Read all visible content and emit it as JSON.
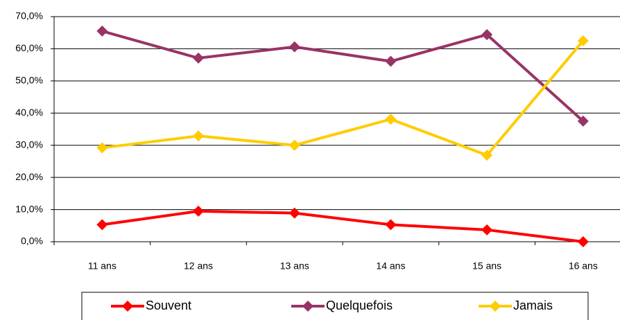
{
  "chart_data": {
    "type": "line",
    "categories": [
      "11 ans",
      "12 ans",
      "13 ans",
      "14 ans",
      "15 ans",
      "16 ans"
    ],
    "series": [
      {
        "name": "Souvent",
        "color": "#ff0000",
        "values": [
          5.3,
          9.5,
          8.9,
          5.3,
          3.7,
          0
        ]
      },
      {
        "name": "Quelquefois",
        "color": "#993366",
        "values": [
          65.5,
          57.1,
          60.6,
          56.1,
          64.4,
          37.5
        ]
      },
      {
        "name": "Jamais",
        "color": "#ffcc00",
        "values": [
          29.2,
          32.9,
          30.0,
          38.1,
          26.9,
          62.5
        ]
      }
    ],
    "ylim": [
      0,
      70
    ],
    "yticks": [
      {
        "value": 0,
        "label": "0,0%"
      },
      {
        "value": 10,
        "label": "10,0%"
      },
      {
        "value": 20,
        "label": "20,0%"
      },
      {
        "value": 30,
        "label": "30,0%"
      },
      {
        "value": 40,
        "label": "40,0%"
      },
      {
        "value": 50,
        "label": "50,0%"
      },
      {
        "value": 60,
        "label": "60,0%"
      },
      {
        "value": 70,
        "label": "70,0%"
      }
    ],
    "grid": true,
    "legend": "bottom"
  }
}
